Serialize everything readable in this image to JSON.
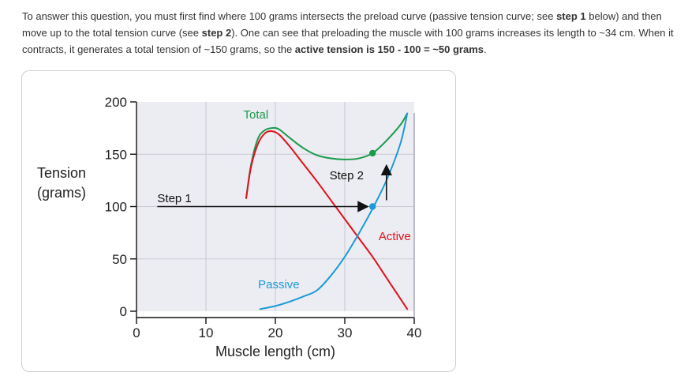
{
  "instructions": {
    "seg1": "To answer this question, you must first find where 100 grams intersects the preload curve (passive tension curve; see ",
    "seg2": "step 1",
    "seg3": " below) and then move up to the total tension curve (see ",
    "seg4": "step 2",
    "seg5": "). One can see that preloading the muscle with 100 grams increases its length to ~34 cm. When it contracts, it generates a total tension of ~150 grams, so the ",
    "seg6": "active tension is 150 - 100 = ~50 grams",
    "seg7": "."
  },
  "chart_data": {
    "type": "line",
    "title": "",
    "xlabel": "Muscle length (cm)",
    "ylabel": [
      "Tension",
      "(grams)"
    ],
    "xlim": [
      0,
      40
    ],
    "ylim": [
      0,
      200
    ],
    "xticks": [
      0,
      10,
      20,
      30,
      40
    ],
    "yticks": [
      0,
      50,
      100,
      150,
      200
    ],
    "highlight_ytick": 100,
    "grid": true,
    "series": [
      {
        "name": "Total",
        "color": "#1a9a4a",
        "x": [
          15.8,
          16.5,
          17.5,
          18.5,
          19.5,
          20.5,
          22,
          24,
          26,
          28,
          30,
          32,
          34,
          36,
          38,
          39
        ],
        "y": [
          108,
          140,
          165,
          173,
          175,
          174,
          166,
          156,
          149,
          146,
          145,
          146,
          151,
          163,
          178,
          189
        ]
      },
      {
        "name": "Active",
        "color": "#e0111b",
        "x": [
          15.8,
          16.5,
          17.5,
          18.5,
          19.5,
          20.5,
          22,
          24,
          26,
          28,
          30,
          32,
          34,
          36,
          38,
          39
        ],
        "y": [
          108,
          138,
          160,
          170,
          172,
          169,
          158,
          141,
          124,
          106,
          88,
          70,
          52,
          32,
          12,
          2
        ]
      },
      {
        "name": "Passive",
        "color": "#1a9ad6",
        "x": [
          17.8,
          20,
          22,
          24,
          26,
          28,
          30,
          32,
          34,
          36,
          38,
          39
        ],
        "y": [
          2,
          5,
          9,
          14,
          20,
          34,
          52,
          74,
          98,
          125,
          160,
          189
        ]
      }
    ],
    "markers": [
      {
        "x": 34,
        "y": 100,
        "color": "#1a9ad6"
      },
      {
        "x": 34,
        "y": 151,
        "color": "#1a9a4a"
      }
    ],
    "annotations": [
      {
        "text": "Step 1",
        "x": 3,
        "y": 104,
        "arrow_from": [
          3,
          100
        ],
        "arrow_to": [
          34,
          100
        ]
      },
      {
        "text": "Step 2",
        "x": 27.8,
        "y": 126,
        "arrow_from": [
          36,
          106
        ],
        "arrow_to": [
          36,
          144
        ]
      }
    ]
  }
}
